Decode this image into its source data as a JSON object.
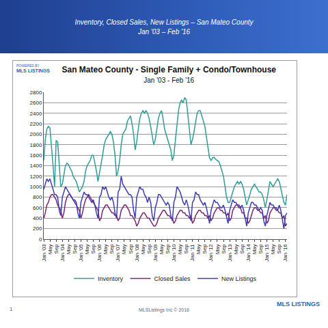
{
  "header": {
    "title": "Inventory, Closed Sales, New Listings – San Mateo County",
    "subtitle": "Jan '03 – Feb '16"
  },
  "logo": {
    "caption": "POWERED BY",
    "text": "MLS LISTINGS"
  },
  "footer": {
    "page": "1",
    "credit": "MLSListings Inc © 2016"
  },
  "chart_data": {
    "type": "line",
    "title": "San Mateo County - Single Family + Condo/Townhouse",
    "subtitle": "Jan '03 - Feb '16",
    "categories": [
      "Jan '03",
      null,
      null,
      null,
      "May",
      null,
      null,
      null,
      "Sep",
      null,
      null,
      null,
      "Jan '04",
      null,
      null,
      null,
      "May",
      null,
      null,
      null,
      "Sep",
      null,
      null,
      null,
      "Jan '05",
      null,
      null,
      null,
      "May",
      null,
      null,
      null,
      "Sep",
      null,
      null,
      null,
      "Jan '06",
      null,
      null,
      null,
      "May",
      null,
      null,
      null,
      "Sep",
      null,
      null,
      null,
      "Jan '07",
      null,
      null,
      null,
      "May",
      null,
      null,
      null,
      "Sep",
      null,
      null,
      null,
      "Jan '08",
      null,
      null,
      null,
      "May",
      null,
      null,
      null,
      "Sep",
      null,
      null,
      null,
      "Jan '09",
      null,
      null,
      null,
      "May",
      null,
      null,
      null,
      "Sep",
      null,
      null,
      null,
      "Jan '10",
      null,
      null,
      null,
      "May",
      null,
      null,
      null,
      "Sep",
      null,
      null,
      null,
      "Jan '11",
      null,
      null,
      null,
      "May",
      null,
      null,
      null,
      "Sep",
      null,
      null,
      null,
      "Jan '12",
      null,
      null,
      null,
      "May",
      null,
      null,
      null,
      "Sep",
      null,
      null,
      null,
      "Jan '13",
      null,
      null,
      null,
      "May",
      null,
      null,
      null,
      "Sep",
      null,
      null,
      null,
      "Jan '14",
      null,
      null,
      null,
      "May",
      null,
      null,
      null,
      "Sep",
      null,
      null,
      null,
      "Jan '15",
      null,
      null,
      null,
      "May",
      null,
      null,
      null,
      "Sep",
      null,
      null,
      null,
      "Jan '16",
      null
    ],
    "series": [
      {
        "name": "Inventory",
        "color": "#2e9c9a",
        "values": [
          1500,
          1900,
          2100,
          2150,
          2120,
          1800,
          1400,
          1000,
          1880,
          1850,
          1400,
          1000,
          1050,
          1200,
          1400,
          1450,
          1420,
          1350,
          1300,
          1200,
          1150,
          1100,
          1000,
          900,
          950,
          1000,
          1100,
          1300,
          1400,
          1450,
          1500,
          1600,
          1600,
          1450,
          1300,
          1100,
          1250,
          1400,
          1600,
          1800,
          1900,
          1950,
          2000,
          2050,
          2000,
          1850,
          1600,
          1200,
          1300,
          1500,
          1800,
          2000,
          2050,
          2100,
          2250,
          2300,
          2350,
          2200,
          2000,
          1700,
          1850,
          2100,
          2300,
          2400,
          2450,
          2400,
          2450,
          2400,
          2300,
          2150,
          1950,
          1800,
          1900,
          2100,
          2300,
          2400,
          2450,
          2300,
          2100,
          2000,
          1900,
          1800,
          1700,
          1500,
          1600,
          1900,
          2200,
          2450,
          2600,
          2650,
          2600,
          2700,
          2650,
          2400,
          2100,
          1800,
          1900,
          2050,
          2250,
          2400,
          2450,
          2450,
          2350,
          2250,
          2150,
          1950,
          1750,
          1550,
          1500,
          1550,
          1560,
          1520,
          1500,
          1480,
          1400,
          1300,
          1200,
          1000,
          800,
          700,
          700,
          800,
          900,
          1000,
          1050,
          1100,
          1050,
          1100,
          1050,
          950,
          800,
          650,
          750,
          850,
          950,
          1000,
          1050,
          1000,
          950,
          900,
          900,
          850,
          750,
          600,
          750,
          950,
          1100,
          1050,
          1000,
          1050,
          1100,
          1150,
          1100,
          950,
          800,
          700,
          650,
          850
        ]
      },
      {
        "name": "Closed Sales",
        "color": "#7b2372",
        "values": [
          400,
          500,
          650,
          700,
          800,
          850,
          850,
          800,
          750,
          650,
          600,
          550,
          400,
          500,
          700,
          800,
          850,
          850,
          800,
          750,
          700,
          650,
          600,
          550,
          400,
          500,
          650,
          750,
          800,
          850,
          800,
          750,
          700,
          650,
          600,
          550,
          350,
          400,
          550,
          600,
          650,
          650,
          600,
          550,
          500,
          500,
          450,
          450,
          350,
          400,
          550,
          600,
          650,
          650,
          600,
          550,
          450,
          450,
          400,
          350,
          250,
          300,
          400,
          450,
          500,
          500,
          450,
          400,
          400,
          350,
          300,
          250,
          250,
          300,
          400,
          450,
          500,
          550,
          550,
          500,
          450,
          450,
          400,
          400,
          300,
          350,
          450,
          500,
          550,
          550,
          500,
          500,
          450,
          450,
          400,
          450,
          300,
          350,
          450,
          500,
          550,
          550,
          500,
          500,
          450,
          450,
          400,
          450,
          350,
          400,
          500,
          550,
          600,
          600,
          550,
          550,
          500,
          500,
          450,
          500,
          350,
          400,
          550,
          600,
          650,
          650,
          600,
          600,
          500,
          500,
          400,
          400,
          300,
          350,
          450,
          550,
          600,
          600,
          550,
          550,
          500,
          500,
          400,
          450,
          300,
          350,
          500,
          550,
          600,
          600,
          550,
          550,
          500,
          500,
          400,
          450,
          250,
          300
        ]
      },
      {
        "name": "New Listings",
        "color": "#3b3bb3",
        "values": [
          950,
          1050,
          1150,
          1100,
          1150,
          1050,
          950,
          850,
          850,
          800,
          550,
          450,
          800,
          900,
          1000,
          950,
          900,
          850,
          800,
          750,
          750,
          700,
          500,
          400,
          700,
          800,
          900,
          850,
          850,
          800,
          750,
          700,
          750,
          650,
          500,
          400,
          800,
          850,
          1000,
          950,
          1000,
          900,
          800,
          750,
          800,
          700,
          500,
          400,
          900,
          950,
          1200,
          1050,
          1000,
          950,
          900,
          850,
          850,
          800,
          550,
          400,
          800,
          900,
          1000,
          950,
          950,
          850,
          800,
          700,
          800,
          700,
          450,
          350,
          600,
          700,
          850,
          850,
          800,
          750,
          700,
          650,
          700,
          650,
          450,
          350,
          700,
          800,
          1000,
          950,
          900,
          800,
          700,
          650,
          750,
          650,
          500,
          350,
          700,
          750,
          900,
          850,
          850,
          750,
          700,
          650,
          700,
          600,
          450,
          300,
          550,
          650,
          750,
          700,
          700,
          650,
          600,
          600,
          650,
          550,
          400,
          300,
          550,
          650,
          750,
          700,
          700,
          650,
          650,
          600,
          650,
          550,
          400,
          250,
          500,
          600,
          700,
          700,
          650,
          650,
          600,
          550,
          600,
          550,
          350,
          250,
          450,
          600,
          700,
          650,
          650,
          600,
          600,
          550,
          650,
          550,
          350,
          200,
          450,
          500
        ]
      }
    ],
    "ylim": [
      0,
      2800
    ],
    "yticks": [
      0,
      200,
      400,
      600,
      800,
      1000,
      1200,
      1400,
      1600,
      1800,
      2000,
      2200,
      2400,
      2600,
      2800
    ],
    "grid": true,
    "legend": "bottom"
  }
}
